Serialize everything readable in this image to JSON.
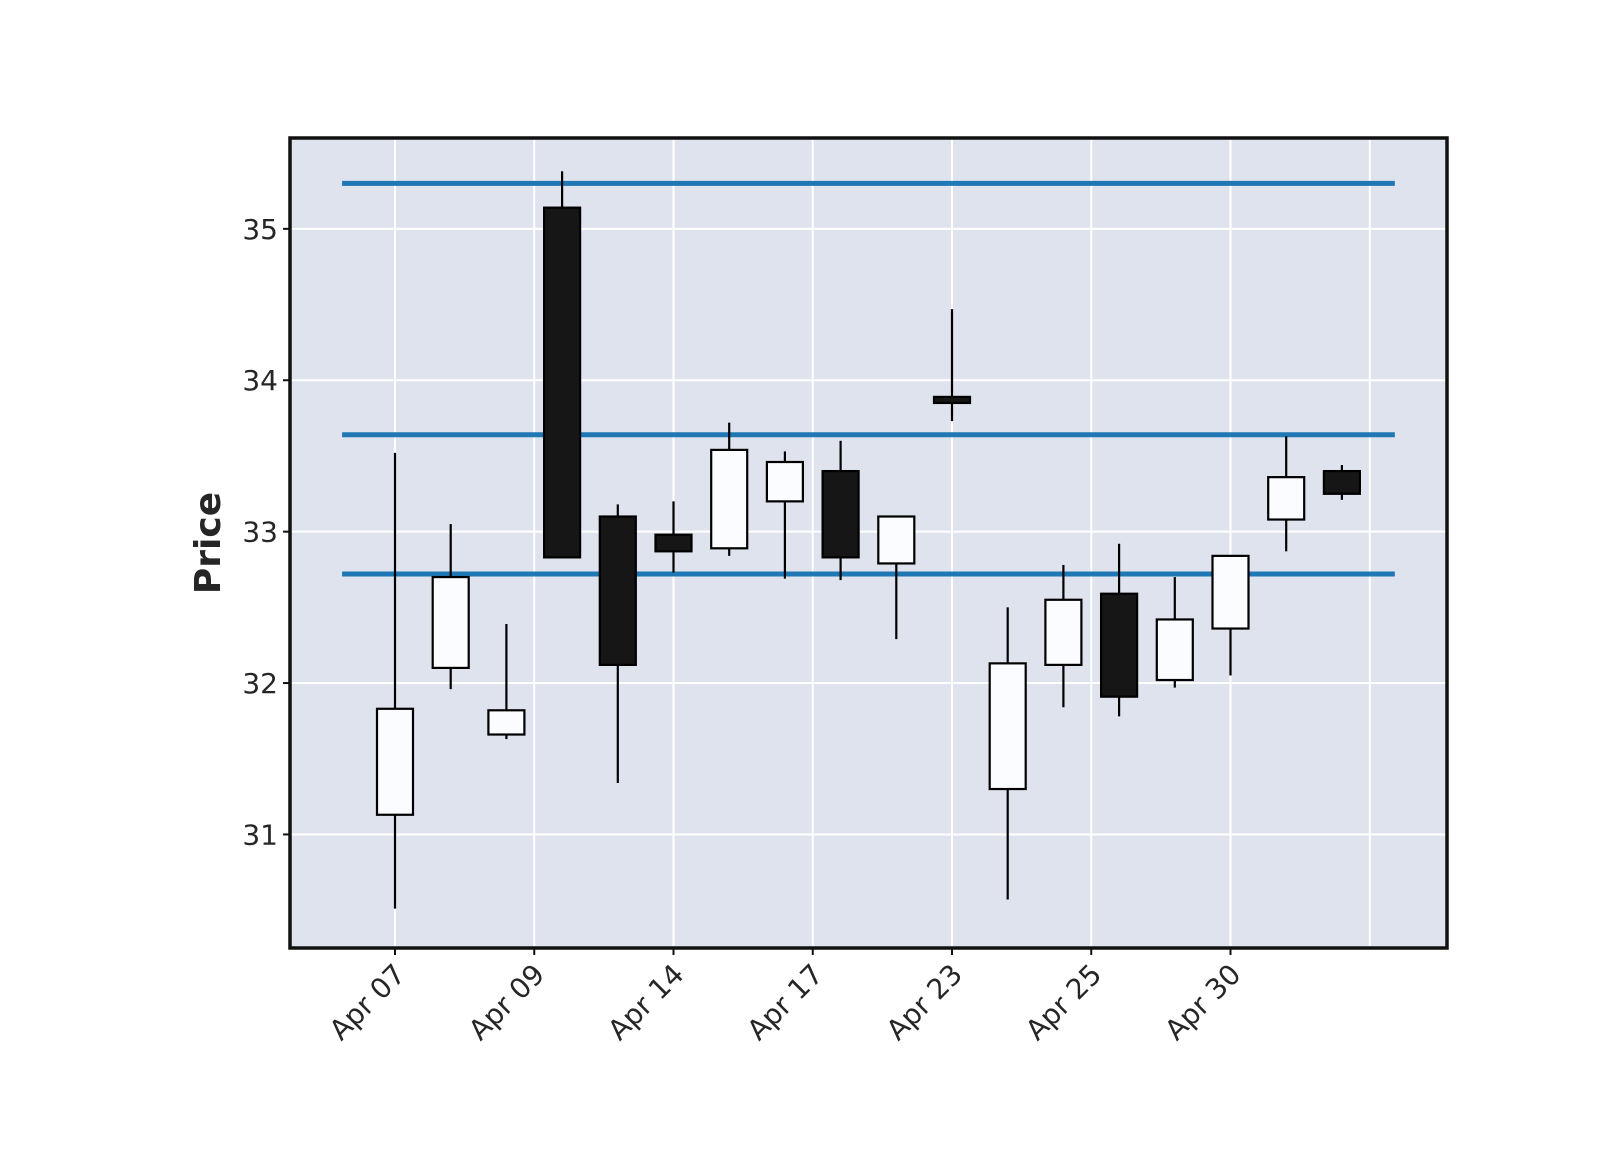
{
  "chart_data": {
    "type": "candlestick",
    "ylabel": "Price",
    "ylim": [
      30.25,
      35.6
    ],
    "yticks": [
      31,
      32,
      33,
      34,
      35
    ],
    "grid": true,
    "colors": {
      "plot_background": "#dfe3ee",
      "grid": "#ffffff",
      "frame": "#111111",
      "up_fill": "#fbfcff",
      "down_fill": "#161616",
      "edge": "#000000",
      "hline": "#1f77b4"
    },
    "xticks": [
      {
        "index": 0,
        "label": "Apr 07"
      },
      {
        "index": 2.5,
        "label": "Apr 09"
      },
      {
        "index": 5,
        "label": "Apr 14"
      },
      {
        "index": 7.5,
        "label": "Apr 17"
      },
      {
        "index": 10,
        "label": "Apr 23"
      },
      {
        "index": 12.5,
        "label": "Apr 25"
      },
      {
        "index": 15,
        "label": "Apr 30"
      }
    ],
    "candles": [
      {
        "open": 31.13,
        "high": 33.52,
        "low": 30.51,
        "close": 31.83
      },
      {
        "open": 32.1,
        "high": 33.05,
        "low": 31.96,
        "close": 32.7
      },
      {
        "open": 31.66,
        "high": 32.39,
        "low": 31.63,
        "close": 31.82
      },
      {
        "open": 35.14,
        "high": 35.38,
        "low": 32.83,
        "close": 32.83
      },
      {
        "open": 33.1,
        "high": 33.18,
        "low": 31.34,
        "close": 32.12
      },
      {
        "open": 32.98,
        "high": 33.2,
        "low": 32.73,
        "close": 32.87
      },
      {
        "open": 32.89,
        "high": 33.72,
        "low": 32.84,
        "close": 33.54
      },
      {
        "open": 33.2,
        "high": 33.53,
        "low": 32.69,
        "close": 33.46
      },
      {
        "open": 33.4,
        "high": 33.6,
        "low": 32.68,
        "close": 32.83
      },
      {
        "open": 32.79,
        "high": 33.1,
        "low": 32.29,
        "close": 33.1
      },
      {
        "open": 33.89,
        "high": 34.47,
        "low": 33.73,
        "close": 33.85
      },
      {
        "open": 31.3,
        "high": 32.5,
        "low": 30.57,
        "close": 32.13
      },
      {
        "open": 32.12,
        "high": 32.78,
        "low": 31.84,
        "close": 32.55
      },
      {
        "open": 32.59,
        "high": 32.92,
        "low": 31.78,
        "close": 31.91
      },
      {
        "open": 32.02,
        "high": 32.7,
        "low": 31.97,
        "close": 32.42
      },
      {
        "open": 32.36,
        "high": 32.84,
        "low": 32.05,
        "close": 32.84
      },
      {
        "open": 33.08,
        "high": 33.63,
        "low": 32.87,
        "close": 33.36
      },
      {
        "open": 33.4,
        "high": 33.44,
        "low": 33.21,
        "close": 33.25
      }
    ],
    "hlines": [
      35.3,
      33.64,
      32.72
    ]
  }
}
